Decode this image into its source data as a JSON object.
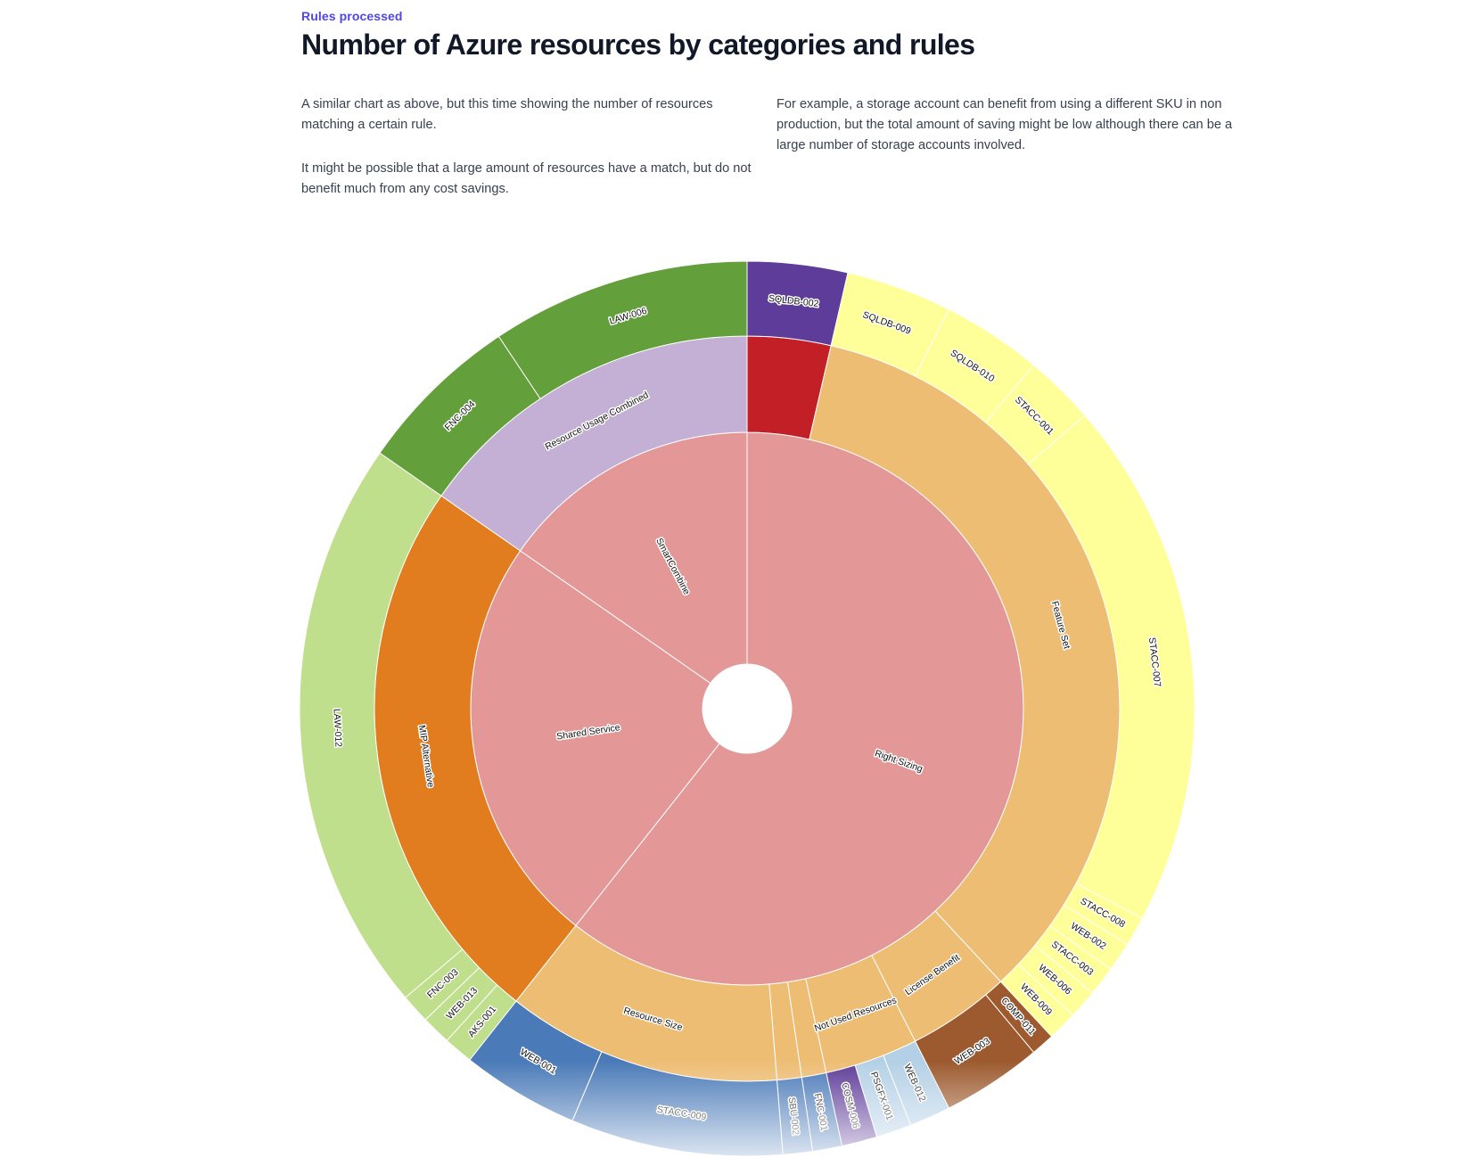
{
  "header": {
    "eyebrow": "Rules processed",
    "title": "Number of Azure resources by categories and rules"
  },
  "description": {
    "left_paragraphs": [
      "A similar chart as above, but this time showing the number of resources matching a certain rule.",
      "It might be possible that a large amount of resources have a match, but do not benefit much from any cost savings."
    ],
    "right_paragraphs": [
      "For example, a storage account can benefit from using a different SKU in non production, but the total amount of saving might be low although there can be a large number of storage accounts involved."
    ]
  },
  "colors": {
    "accent": "#4f46e5",
    "title": "#111827",
    "body_text": "#374151"
  },
  "chart_data": {
    "type": "sunburst",
    "title": "",
    "levels": [
      "category",
      "subcategory",
      "rule"
    ],
    "nodes": [
      {
        "name": "Right Sizing",
        "color": "#e39797",
        "children": [
          {
            "name": "",
            "color": "#c21f26",
            "children": [
              {
                "name": "SQLDB-002",
                "value": 17,
                "color": "#5e3c99"
              }
            ]
          },
          {
            "name": "Feature Set",
            "color": "#edbd74",
            "children": [
              {
                "name": "SQLDB-009",
                "value": 18,
                "color": "#ffff99"
              },
              {
                "name": "SQLDB-010",
                "value": 17,
                "color": "#ffff99"
              },
              {
                "name": "STACC-001",
                "value": 12,
                "color": "#ffff99"
              },
              {
                "name": "STACC-007",
                "value": 90,
                "color": "#ffff99"
              },
              {
                "name": "STACC-008",
                "value": 5,
                "color": "#ffff99"
              },
              {
                "name": "WEB-002",
                "value": 5,
                "color": "#ffff99"
              },
              {
                "name": "STACC-003",
                "value": 5,
                "color": "#ffff99"
              },
              {
                "name": "WEB-006",
                "value": 5,
                "color": "#ffff99"
              },
              {
                "name": "WEB-009",
                "value": 5,
                "color": "#ffff99"
              }
            ]
          },
          {
            "name": "License Benefit",
            "color": "#edbd74",
            "children": [
              {
                "name": "COMP-011",
                "value": 4,
                "color": "#9c5a2e"
              },
              {
                "name": "WEB-003",
                "value": 17,
                "color": "#9c5a2e"
              }
            ]
          },
          {
            "name": "Not Used Resources",
            "color": "#edbd74",
            "children": [
              {
                "name": "WEB-012",
                "value": 7,
                "color": "#b4d0e6"
              },
              {
                "name": "PSGFX-001",
                "value": 6,
                "color": "#b4d0e6"
              },
              {
                "name": "COSM-006",
                "value": 6,
                "color": "#5e3c99"
              }
            ]
          },
          {
            "name": "",
            "color": "#edbd74",
            "children": [
              {
                "name": "FNC-001",
                "value": 5,
                "color": "#4a7ab8"
              }
            ]
          },
          {
            "name": "",
            "color": "#edbd74",
            "children": [
              {
                "name": "SBU-002",
                "value": 5,
                "color": "#4a7ab8"
              }
            ]
          },
          {
            "name": "Resource Size",
            "color": "#edbd74",
            "children": [
              {
                "name": "STACC-009",
                "value": 36,
                "color": "#4a7ab8"
              },
              {
                "name": "WEB-001",
                "value": 20,
                "color": "#4a7ab8"
              }
            ]
          }
        ]
      },
      {
        "name": "Shared Service",
        "color": "#e39797",
        "children": [
          {
            "name": "MIP Alternative",
            "color": "#e17c1f",
            "children": [
              {
                "name": "AKS-001",
                "value": 5,
                "color": "#c0df8c"
              },
              {
                "name": "WEB-013",
                "value": 5,
                "color": "#c0df8c"
              },
              {
                "name": "FNC-003",
                "value": 5,
                "color": "#c0df8c"
              },
              {
                "name": "LAW-012",
                "value": 98,
                "color": "#c0df8c"
              }
            ]
          }
        ]
      },
      {
        "name": "SmartCombine",
        "color": "#e39797",
        "children": [
          {
            "name": "Resource Usage Combined",
            "color": "#c3b0d4",
            "children": [
              {
                "name": "FNC-004",
                "value": 28,
                "color": "#639f3a"
              },
              {
                "name": "LAW-006",
                "value": 44,
                "color": "#639f3a"
              }
            ]
          }
        ]
      }
    ]
  }
}
